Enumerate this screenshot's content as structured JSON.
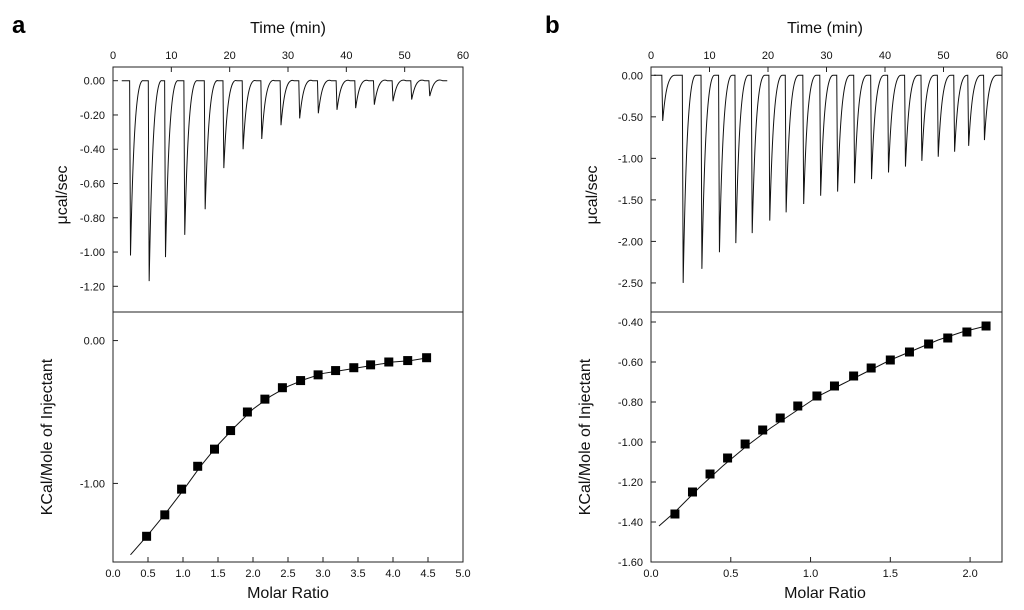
{
  "figure": {
    "panels": [
      {
        "label": "a",
        "top_plot": {
          "xlabel": "Time (min)",
          "ylabel": "μcal/sec",
          "xlim": [
            0,
            60
          ],
          "ylim": [
            -1.35,
            0.08
          ],
          "xticks": [
            0,
            10,
            20,
            30,
            40,
            50,
            60
          ],
          "yticks": [
            0.0,
            -0.2,
            -0.4,
            -0.6,
            -0.8,
            -1.0,
            -1.2
          ],
          "ytick_labels": [
            "0.00",
            "-0.20",
            "-0.40",
            "-0.60",
            "-0.80",
            "-1.00",
            "-1.20"
          ],
          "xtick_labels": [
            "0",
            "10",
            "20",
            "30",
            "40",
            "50",
            "60"
          ]
        },
        "bottom_plot": {
          "xlabel": "Molar Ratio",
          "ylabel": "KCal/Mole of Injectant",
          "xlim": [
            0,
            5
          ],
          "ylim": [
            -1.55,
            0.2
          ],
          "xticks": [
            0,
            0.5,
            1.0,
            1.5,
            2.0,
            2.5,
            3.0,
            3.5,
            4.0,
            4.5,
            5.0
          ],
          "xtick_labels": [
            "0.0",
            "0.5",
            "1.0",
            "1.5",
            "2.0",
            "2.5",
            "3.0",
            "3.5",
            "4.0",
            "4.5",
            "5.0"
          ],
          "yticks": [
            0.0,
            -1.0
          ],
          "ytick_labels": [
            "0.00",
            "-1.00"
          ]
        }
      },
      {
        "label": "b",
        "top_plot": {
          "xlabel": "Time (min)",
          "ylabel": "μcal/sec",
          "xlim": [
            0,
            60
          ],
          "ylim": [
            -2.85,
            0.1
          ],
          "xticks": [
            0,
            10,
            20,
            30,
            40,
            50,
            60
          ],
          "yticks": [
            0.0,
            -0.5,
            -1.0,
            -1.5,
            -2.0,
            -2.5
          ],
          "ytick_labels": [
            "0.00",
            "-0.50",
            "-1.00",
            "-1.50",
            "-2.00",
            "-2.50"
          ],
          "xtick_labels": [
            "0",
            "10",
            "20",
            "30",
            "40",
            "50",
            "60"
          ]
        },
        "bottom_plot": {
          "xlabel": "Molar Ratio",
          "ylabel": "KCal/Mole of Injectant",
          "xlim": [
            0,
            2.2
          ],
          "ylim": [
            -1.6,
            -0.35
          ],
          "xticks": [
            0,
            0.5,
            1.0,
            1.5,
            2.0
          ],
          "xtick_labels": [
            "0.0",
            "0.5",
            "1.0",
            "1.5",
            "2.0"
          ],
          "yticks": [
            -0.4,
            -0.6,
            -0.8,
            -1.0,
            -1.2,
            -1.4,
            -1.6
          ],
          "ytick_labels": [
            "-0.40",
            "-0.60",
            "-0.80",
            "-1.00",
            "-1.20",
            "-1.40",
            "-1.60"
          ]
        }
      }
    ]
  },
  "chart_data": [
    {
      "panel": "a",
      "type": "line",
      "subplot": "top",
      "xlabel": "Time (min)",
      "ylabel": "μcal/sec",
      "xlim": [
        0,
        60
      ],
      "ylim": [
        -1.35,
        0.08
      ],
      "series": [
        {
          "kind": "injection_peaks",
          "x": [
            3.0,
            6.2,
            9.0,
            12.3,
            15.8,
            19.0,
            22.3,
            25.5,
            28.8,
            32.0,
            35.2,
            38.4,
            41.6,
            44.8,
            48.0,
            51.2,
            54.3
          ],
          "values": [
            -1.02,
            -1.17,
            -1.03,
            -0.9,
            -0.75,
            -0.51,
            -0.4,
            -0.34,
            -0.26,
            -0.22,
            -0.19,
            -0.17,
            -0.16,
            -0.14,
            -0.12,
            -0.11,
            -0.09
          ]
        }
      ]
    },
    {
      "panel": "a",
      "type": "scatter",
      "subplot": "bottom",
      "xlabel": "Molar Ratio",
      "ylabel": "KCal/Mole of Injectant",
      "xlim": [
        0,
        5
      ],
      "ylim": [
        -1.55,
        0.2
      ],
      "series": [
        {
          "kind": "points",
          "x": [
            0.48,
            0.74,
            0.98,
            1.21,
            1.45,
            1.68,
            1.92,
            2.17,
            2.42,
            2.68,
            2.93,
            3.18,
            3.44,
            3.68,
            3.94,
            4.21,
            4.48
          ],
          "values": [
            -1.37,
            -1.22,
            -1.04,
            -0.88,
            -0.76,
            -0.63,
            -0.5,
            -0.41,
            -0.33,
            -0.28,
            -0.24,
            -0.21,
            -0.19,
            -0.17,
            -0.15,
            -0.14,
            -0.12
          ]
        },
        {
          "kind": "fit",
          "x": [
            0.25,
            0.5,
            0.75,
            1.0,
            1.25,
            1.5,
            1.75,
            2.0,
            2.25,
            2.5,
            2.75,
            3.0,
            3.25,
            3.5,
            3.75,
            4.0,
            4.25,
            4.5
          ],
          "values": [
            -1.5,
            -1.36,
            -1.21,
            -1.05,
            -0.88,
            -0.73,
            -0.6,
            -0.48,
            -0.39,
            -0.32,
            -0.27,
            -0.23,
            -0.21,
            -0.19,
            -0.17,
            -0.15,
            -0.14,
            -0.12
          ]
        }
      ]
    },
    {
      "panel": "b",
      "type": "line",
      "subplot": "top",
      "xlabel": "Time (min)",
      "ylabel": "μcal/sec",
      "xlim": [
        0,
        60
      ],
      "ylim": [
        -2.85,
        0.1
      ],
      "series": [
        {
          "kind": "injection_peaks",
          "x": [
            2.0,
            5.5,
            8.7,
            11.7,
            14.5,
            17.3,
            20.3,
            23.1,
            26.1,
            29.0,
            31.9,
            34.8,
            37.7,
            40.6,
            43.5,
            46.3,
            49.1,
            51.9,
            54.3,
            57.0
          ],
          "values": [
            -0.55,
            -2.5,
            -2.33,
            -2.13,
            -2.02,
            -1.9,
            -1.75,
            -1.65,
            -1.55,
            -1.45,
            -1.4,
            -1.3,
            -1.25,
            -1.17,
            -1.1,
            -1.03,
            -0.98,
            -0.92,
            -0.85,
            -0.78
          ]
        }
      ]
    },
    {
      "panel": "b",
      "type": "scatter",
      "subplot": "bottom",
      "xlabel": "Molar Ratio",
      "ylabel": "KCal/Mole of Injectant",
      "xlim": [
        0,
        2.2
      ],
      "ylim": [
        -1.6,
        -0.35
      ],
      "series": [
        {
          "kind": "points",
          "x": [
            0.15,
            0.26,
            0.37,
            0.48,
            0.59,
            0.7,
            0.81,
            0.92,
            1.04,
            1.15,
            1.27,
            1.38,
            1.5,
            1.62,
            1.74,
            1.86,
            1.98,
            2.1
          ],
          "values": [
            -1.36,
            -1.25,
            -1.16,
            -1.08,
            -1.01,
            -0.94,
            -0.88,
            -0.82,
            -0.77,
            -0.72,
            -0.67,
            -0.63,
            -0.59,
            -0.55,
            -0.51,
            -0.48,
            -0.45,
            -0.42
          ]
        },
        {
          "kind": "fit",
          "x": [
            0.05,
            0.15,
            0.3,
            0.45,
            0.6,
            0.75,
            0.9,
            1.05,
            1.2,
            1.35,
            1.5,
            1.65,
            1.8,
            1.95,
            2.1
          ],
          "values": [
            -1.42,
            -1.35,
            -1.23,
            -1.12,
            -1.02,
            -0.93,
            -0.85,
            -0.77,
            -0.71,
            -0.65,
            -0.59,
            -0.54,
            -0.49,
            -0.45,
            -0.42
          ]
        }
      ]
    }
  ]
}
